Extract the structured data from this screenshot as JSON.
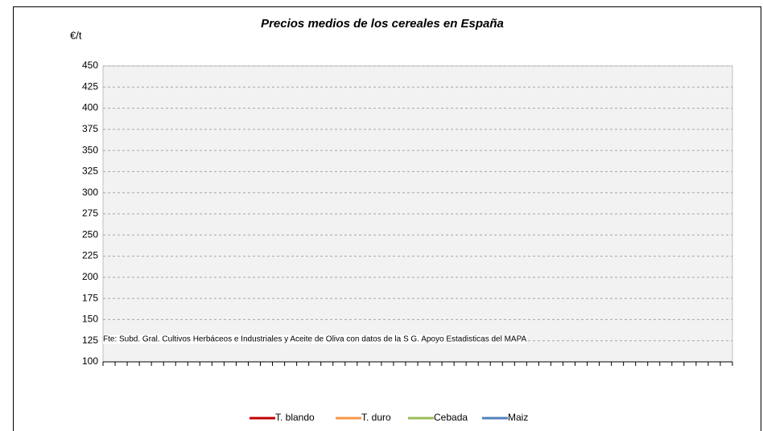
{
  "chart_data": {
    "type": "line",
    "title": "Precios medios de los cereales en España",
    "y_label": "€/t",
    "note": "Fte: Subd. Gral. Cultivos Herbáceos e Industriales y Aceite de Oliva con datos de la S G. Apoyo Estadisticas del MAPA",
    "categories": [
      null,
      null,
      null,
      null,
      null,
      null,
      null,
      null,
      null,
      null,
      null,
      null,
      null,
      null,
      null,
      null,
      null,
      null,
      null,
      null,
      null,
      null,
      null,
      null,
      null,
      null,
      null,
      null,
      null,
      null,
      null,
      null,
      null,
      null,
      null,
      null,
      null,
      null,
      null,
      null,
      null,
      null,
      null,
      null,
      null,
      null,
      null,
      null,
      null,
      null,
      null,
      null
    ],
    "series": [
      {
        "name": "T. blando",
        "color": "#c00000",
        "values": [
          null,
          null,
          null,
          null,
          null,
          null,
          null,
          null,
          null,
          null,
          null,
          null,
          null,
          null,
          null,
          null,
          null,
          null,
          null,
          null,
          null,
          null,
          null,
          null,
          null,
          null,
          null,
          null,
          null,
          null,
          null,
          null,
          null,
          null,
          null,
          null,
          null,
          null,
          null,
          null,
          null,
          null,
          null,
          null,
          null,
          null,
          null,
          null,
          null,
          null,
          null,
          null
        ]
      },
      {
        "name": "T. duro",
        "color": "#f79646",
        "values": [
          null,
          null,
          null,
          null,
          null,
          null,
          null,
          null,
          null,
          null,
          null,
          null,
          null,
          null,
          null,
          null,
          null,
          null,
          null,
          null,
          null,
          null,
          null,
          null,
          null,
          null,
          null,
          null,
          null,
          null,
          null,
          null,
          null,
          null,
          null,
          null,
          null,
          null,
          null,
          null,
          null,
          null,
          null,
          null,
          null,
          null,
          null,
          null,
          null,
          null,
          null,
          null
        ]
      },
      {
        "name": "Cebada",
        "color": "#9bbb59",
        "values": [
          null,
          null,
          null,
          null,
          null,
          null,
          null,
          null,
          null,
          null,
          null,
          null,
          null,
          null,
          null,
          null,
          null,
          null,
          null,
          null,
          null,
          null,
          null,
          null,
          null,
          null,
          null,
          null,
          null,
          null,
          null,
          null,
          null,
          null,
          null,
          null,
          null,
          null,
          null,
          null,
          null,
          null,
          null,
          null,
          null,
          null,
          null,
          null,
          null,
          null,
          null,
          null
        ]
      },
      {
        "name": "Maiz",
        "color": "#4f81bd",
        "values": [
          null,
          null,
          null,
          null,
          null,
          null,
          null,
          null,
          null,
          null,
          null,
          null,
          null,
          null,
          null,
          null,
          null,
          null,
          null,
          null,
          null,
          null,
          null,
          null,
          null,
          null,
          null,
          null,
          null,
          null,
          null,
          null,
          null,
          null,
          null,
          null,
          null,
          null,
          null,
          null,
          null,
          null,
          null,
          null,
          null,
          null,
          null,
          null,
          null,
          null,
          null,
          null
        ]
      }
    ],
    "ylim": [
      100,
      450
    ],
    "yticks": [
      100,
      125,
      150,
      175,
      200,
      225,
      250,
      275,
      300,
      325,
      350,
      375,
      400,
      425,
      450
    ],
    "grid": true,
    "legend": "bottom"
  }
}
